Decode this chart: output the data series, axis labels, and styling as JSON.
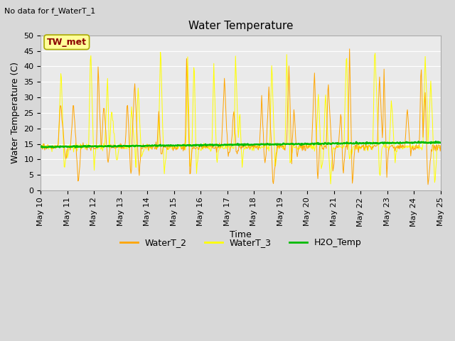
{
  "title": "Water Temperature",
  "subtitle": "No data for f_WaterT_1",
  "xlabel": "Time",
  "ylabel": "Water Temperature (C)",
  "ylim": [
    0,
    50
  ],
  "x_tick_labels": [
    "May 10",
    "May 11",
    "May 12",
    "May 13",
    "May 14",
    "May 15",
    "May 16",
    "May 17",
    "May 18",
    "May 19",
    "May 20",
    "May 21",
    "May 22",
    "May 23",
    "May 24",
    "May 25"
  ],
  "legend_labels": [
    "WaterT_2",
    "WaterT_3",
    "H2O_Temp"
  ],
  "watert2_color": "#FFA500",
  "watert3_color": "#FFFF00",
  "h2otemp_color": "#00BB00",
  "tw_met_box_color": "#FFFF99",
  "tw_met_text_color": "#8B0000",
  "tw_met_edge_color": "#AAAA00",
  "fig_facecolor": "#D8D8D8",
  "plot_facecolor": "#EAEAEA",
  "grid_color": "#FFFFFF",
  "title_fontsize": 11,
  "label_fontsize": 9,
  "tick_fontsize": 8
}
